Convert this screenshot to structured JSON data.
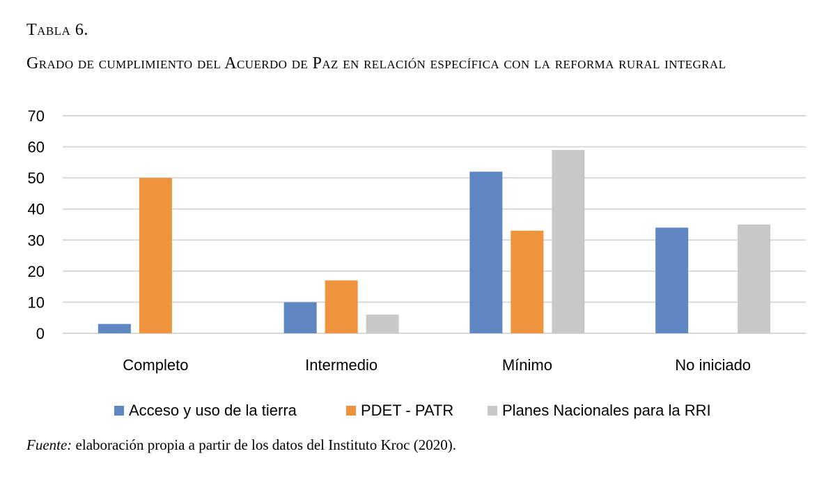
{
  "caption": {
    "label": "Tabla 6.",
    "title": "Grado de cumplimiento del Acuerdo de Paz en relación específica con la reforma rural integral"
  },
  "source": {
    "prefix": "Fuente:",
    "text": " elaboración propia a partir de los datos del Instituto Kroc (2020)."
  },
  "chart_data": {
    "type": "bar",
    "categories": [
      "Completo",
      "Intermedio",
      "Mínimo",
      "No iniciado"
    ],
    "series": [
      {
        "name": "Acceso y uso de la tierra",
        "color": "#5f87c2",
        "values": [
          3,
          10,
          52,
          34
        ]
      },
      {
        "name": "PDET - PATR",
        "color": "#f0933d",
        "values": [
          50,
          17,
          33,
          0
        ]
      },
      {
        "name": "Planes Nacionales para la RRI",
        "color": "#c8c8c8",
        "values": [
          0,
          6,
          59,
          35
        ]
      }
    ],
    "y_ticks": [
      "0",
      "10",
      "20",
      "30",
      "40",
      "50",
      "60",
      "70"
    ],
    "ylim": [
      0,
      70
    ],
    "grid": true,
    "legend_position": "bottom"
  }
}
